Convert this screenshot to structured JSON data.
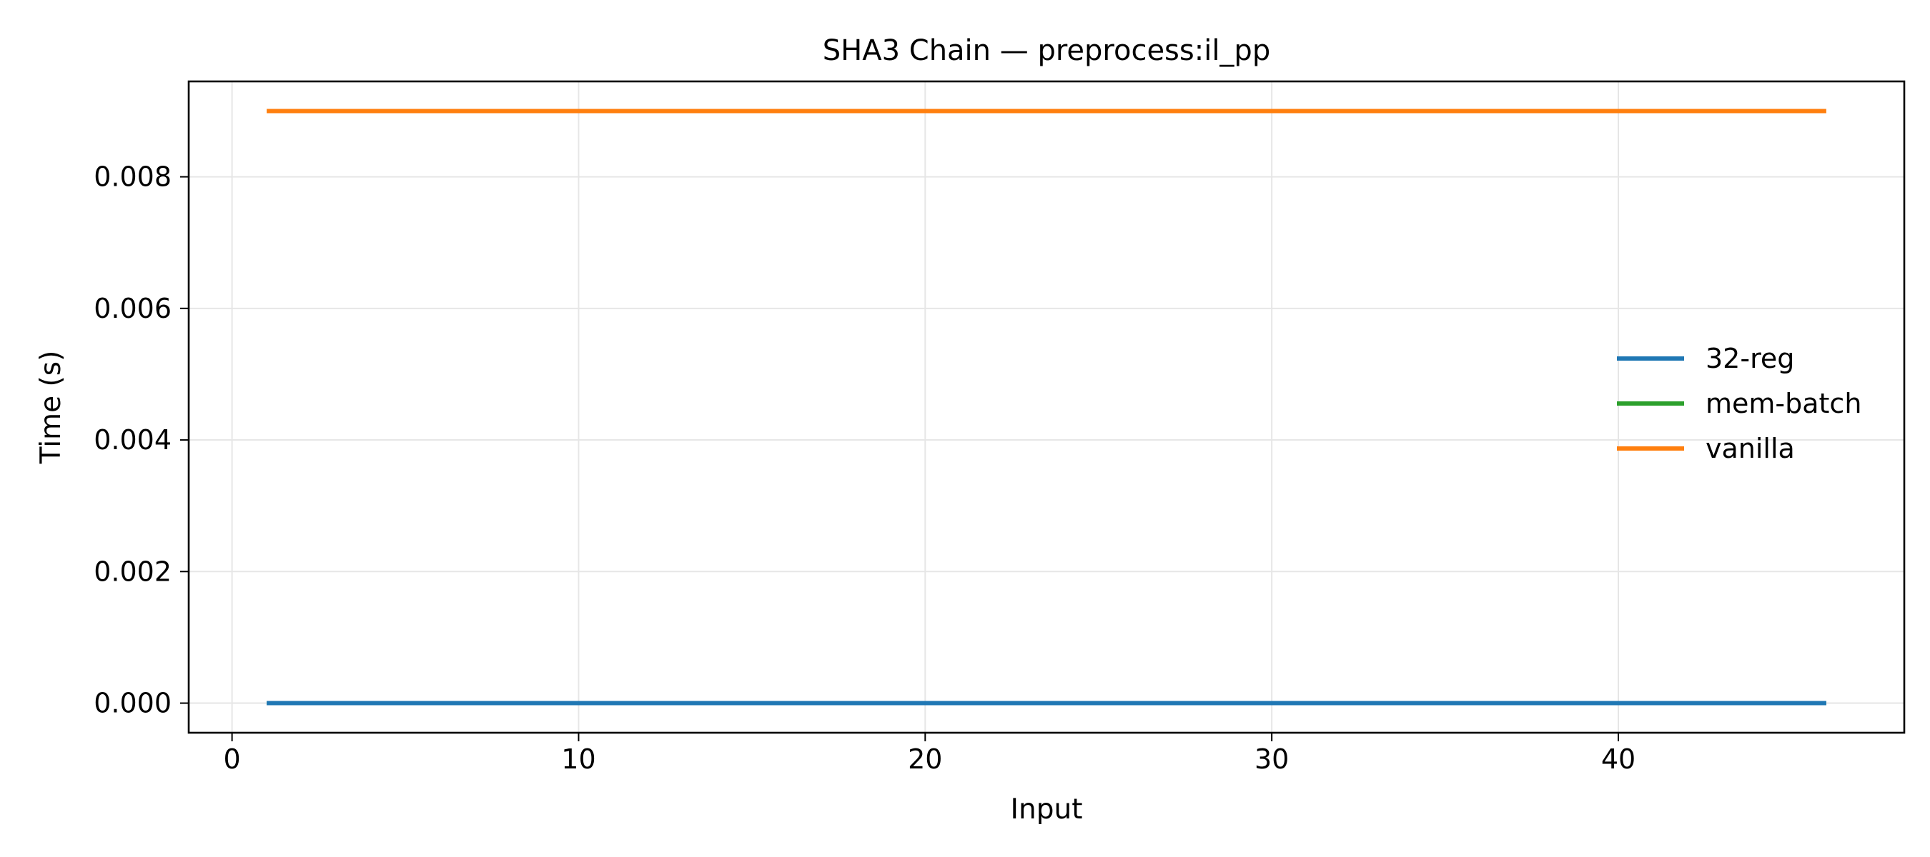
{
  "chart_data": {
    "type": "line",
    "title": "SHA3 Chain — preprocess:il_pp",
    "xlabel": "Input",
    "ylabel": "Time (s)",
    "xlim": [
      -1.25,
      48.25
    ],
    "ylim": [
      -0.00045,
      0.00945
    ],
    "xticks": [
      0,
      10,
      20,
      30,
      40
    ],
    "xtick_labels": [
      "0",
      "10",
      "20",
      "30",
      "40"
    ],
    "yticks": [
      0.0,
      0.002,
      0.004,
      0.006,
      0.008
    ],
    "ytick_labels": [
      "0.000",
      "0.002",
      "0.004",
      "0.006",
      "0.008"
    ],
    "grid": true,
    "legend_position": "center-right",
    "x": [
      1,
      46
    ],
    "series": [
      {
        "name": "32-reg",
        "color": "#1f77b4",
        "values": [
          0.0,
          0.0
        ]
      },
      {
        "name": "mem-batch",
        "color": "#2ca02c",
        "values": [
          0.0,
          0.0
        ]
      },
      {
        "name": "vanilla",
        "color": "#ff7f0e",
        "values": [
          0.009,
          0.009
        ]
      }
    ],
    "draw_order": [
      2,
      1,
      0
    ]
  }
}
